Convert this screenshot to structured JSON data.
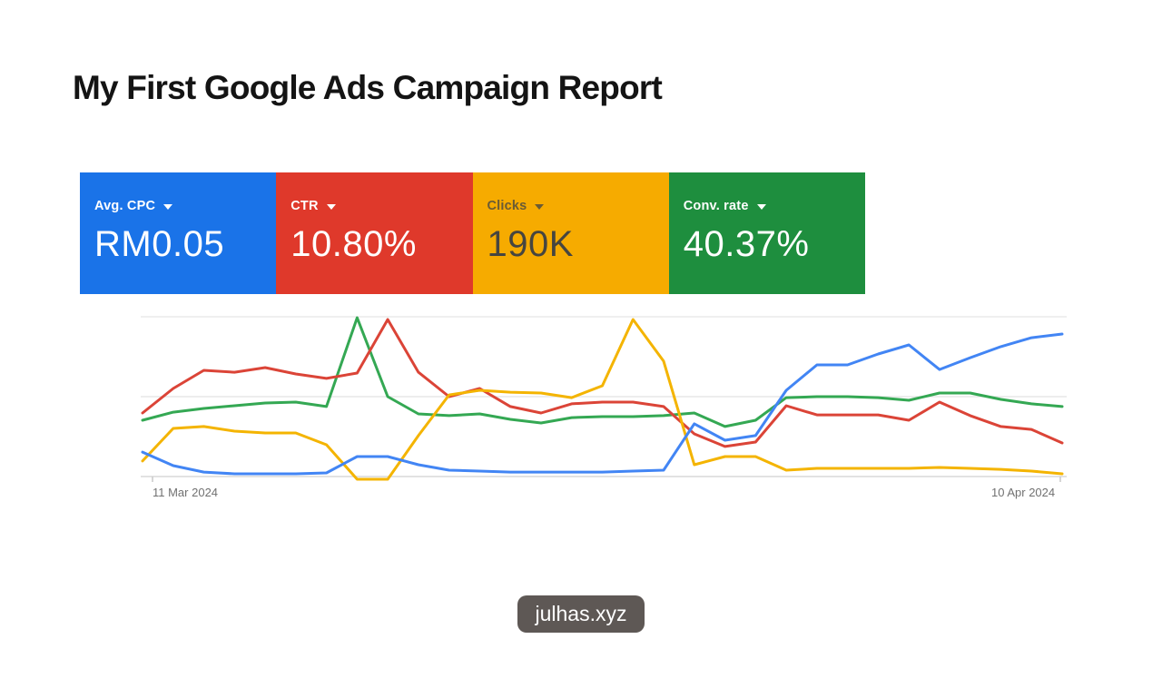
{
  "report": {
    "title": "My First Google Ads Campaign Report"
  },
  "scorecards": [
    {
      "metric": "Avg. CPC",
      "value": "RM0.05",
      "bg_color": "#1a73e8",
      "label_color": "#ffffff",
      "value_color": "#ffffff"
    },
    {
      "metric": "CTR",
      "value": "10.80%",
      "bg_color": "#df392b",
      "label_color": "#ffffff",
      "value_color": "#ffffff"
    },
    {
      "metric": "Clicks",
      "value": "190K",
      "bg_color": "#f6ab00",
      "label_color": "#6a5b35",
      "value_color": "#464540"
    },
    {
      "metric": "Conv. rate",
      "value": "40.37%",
      "bg_color": "#1e8e3e",
      "label_color": "#ffffff",
      "value_color": "#ffffff"
    }
  ],
  "chart_data": {
    "type": "line",
    "title": "",
    "xlabel": "",
    "ylabel": "",
    "x_axis": {
      "start_label": "11 Mar 2024",
      "end_label": "10 Apr 2024",
      "points": 31,
      "interval": "daily"
    },
    "y_axis": {
      "labels_visible": false,
      "scale": "normalized 0-100 of plot height",
      "gridline_values": [
        0,
        50,
        100
      ]
    },
    "grid": true,
    "legend": "none",
    "series": [
      {
        "name": "Avg. CPC",
        "color": "#4285f4",
        "values": [
          15.3,
          6.8,
          2.8,
          1.7,
          1.7,
          1.7,
          2.3,
          12.5,
          12.5,
          7.4,
          4,
          3.4,
          2.8,
          2.8,
          2.8,
          2.8,
          3.4,
          4,
          33,
          22.7,
          25.6,
          54,
          69.9,
          69.9,
          76.7,
          82.4,
          67,
          74.4,
          81.3,
          86.9,
          89.2
        ]
      },
      {
        "name": "CTR",
        "color": "#db4437",
        "values": [
          39.8,
          55.1,
          66.5,
          65.3,
          68.2,
          64.2,
          61.4,
          64.8,
          98.3,
          65.3,
          50,
          55.1,
          43.8,
          39.8,
          45.5,
          46.6,
          46.6,
          43.8,
          26.7,
          18.8,
          21.6,
          44.3,
          38.6,
          38.6,
          38.6,
          35.2,
          46.6,
          38.1,
          31.3,
          29.5,
          21
        ]
      },
      {
        "name": "Clicks",
        "color": "#f4b400",
        "values": [
          9.7,
          30.1,
          31.3,
          28.4,
          27.3,
          27.3,
          19.9,
          -1.7,
          -1.7,
          25.6,
          51.1,
          54,
          52.8,
          52.3,
          49.4,
          56.8,
          98.3,
          72.2,
          7.4,
          12.5,
          12.5,
          4,
          5.1,
          5.1,
          5.1,
          5.1,
          5.7,
          5.1,
          4.5,
          3.4,
          1.7
        ]
      },
      {
        "name": "Conv. rate",
        "color": "#34a853",
        "values": [
          35.2,
          40.3,
          42.6,
          44.3,
          46,
          46.6,
          43.8,
          99.4,
          50,
          39.2,
          38.1,
          39.2,
          35.8,
          33.5,
          36.9,
          37.5,
          37.5,
          38.1,
          39.8,
          31.3,
          35.2,
          49.4,
          50,
          50,
          49.4,
          47.7,
          52.3,
          52.3,
          48.3,
          45.5,
          43.8
        ]
      }
    ]
  },
  "footer": {
    "watermark": "julhas.xyz"
  }
}
